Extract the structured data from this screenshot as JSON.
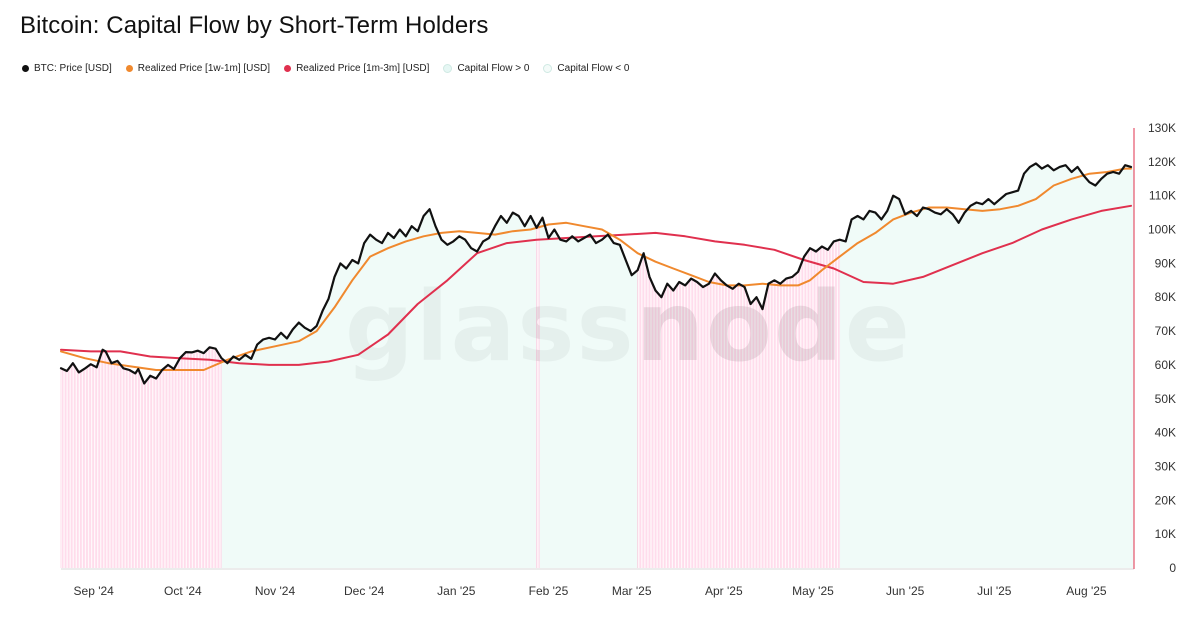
{
  "title": "Bitcoin: Capital Flow by Short-Term Holders",
  "watermark": "glassnode",
  "legend": [
    {
      "label": "BTC: Price [USD]",
      "color": "#111111"
    },
    {
      "label": "Realized Price [1w-1m] [USD]",
      "color": "#f0892e"
    },
    {
      "label": "Realized Price [1m-3m] [USD]",
      "color": "#e0304e"
    },
    {
      "label": "Capital Flow > 0",
      "color": "#e6f7f4"
    },
    {
      "label": "Capital Flow < 0",
      "color": "#f4fbf9"
    }
  ],
  "chart_data": {
    "type": "line",
    "title": "Bitcoin: Capital Flow by Short-Term Holders",
    "x_ticks": [
      {
        "label": "Sep '24",
        "day": 11
      },
      {
        "label": "Oct '24",
        "day": 41
      },
      {
        "label": "Nov '24",
        "day": 72
      },
      {
        "label": "Dec '24",
        "day": 102
      },
      {
        "label": "Jan '25",
        "day": 133
      },
      {
        "label": "Feb '25",
        "day": 164
      },
      {
        "label": "Mar '25",
        "day": 192
      },
      {
        "label": "Apr '25",
        "day": 223
      },
      {
        "label": "May '25",
        "day": 253
      },
      {
        "label": "Jun '25",
        "day": 284
      },
      {
        "label": "Jul '25",
        "day": 314
      },
      {
        "label": "Aug '25",
        "day": 345
      }
    ],
    "y_ticks": [
      "0",
      "10K",
      "20K",
      "30K",
      "40K",
      "50K",
      "60K",
      "70K",
      "80K",
      "90K",
      "100K",
      "110K",
      "120K",
      "130K"
    ],
    "ylim": [
      0,
      130000
    ],
    "xlim_days": [
      0,
      361
    ],
    "series": [
      {
        "name": "BTC: Price [USD]",
        "color": "#111111",
        "points": [
          [
            0,
            59000
          ],
          [
            2,
            58200
          ],
          [
            4,
            60500
          ],
          [
            6,
            57800
          ],
          [
            8,
            58900
          ],
          [
            10,
            60200
          ],
          [
            12,
            59300
          ],
          [
            14,
            64500
          ],
          [
            15,
            64000
          ],
          [
            17,
            60500
          ],
          [
            19,
            61200
          ],
          [
            21,
            59000
          ],
          [
            23,
            58500
          ],
          [
            25,
            57500
          ],
          [
            26,
            58800
          ],
          [
            28,
            54500
          ],
          [
            30,
            56800
          ],
          [
            32,
            56000
          ],
          [
            34,
            58500
          ],
          [
            36,
            60000
          ],
          [
            38,
            58800
          ],
          [
            40,
            62000
          ],
          [
            42,
            63800
          ],
          [
            44,
            63700
          ],
          [
            46,
            64200
          ],
          [
            48,
            63500
          ],
          [
            50,
            65200
          ],
          [
            52,
            64800
          ],
          [
            54,
            62000
          ],
          [
            56,
            60500
          ],
          [
            58,
            62500
          ],
          [
            60,
            61500
          ],
          [
            62,
            63000
          ],
          [
            64,
            61800
          ],
          [
            66,
            66000
          ],
          [
            68,
            67500
          ],
          [
            70,
            68000
          ],
          [
            72,
            67500
          ],
          [
            74,
            69500
          ],
          [
            76,
            67800
          ],
          [
            78,
            70500
          ],
          [
            80,
            72500
          ],
          [
            82,
            71000
          ],
          [
            84,
            70000
          ],
          [
            86,
            71500
          ],
          [
            88,
            76000
          ],
          [
            90,
            79500
          ],
          [
            92,
            86000
          ],
          [
            94,
            90000
          ],
          [
            96,
            88500
          ],
          [
            98,
            91000
          ],
          [
            100,
            90000
          ],
          [
            102,
            96000
          ],
          [
            104,
            98500
          ],
          [
            106,
            97000
          ],
          [
            108,
            96000
          ],
          [
            110,
            99000
          ],
          [
            112,
            97500
          ],
          [
            114,
            100000
          ],
          [
            116,
            98000
          ],
          [
            118,
            101000
          ],
          [
            120,
            99500
          ],
          [
            122,
            104000
          ],
          [
            124,
            106000
          ],
          [
            126,
            101000
          ],
          [
            128,
            97000
          ],
          [
            130,
            95500
          ],
          [
            132,
            96500
          ],
          [
            134,
            98000
          ],
          [
            136,
            97000
          ],
          [
            138,
            94500
          ],
          [
            140,
            93500
          ],
          [
            142,
            96500
          ],
          [
            144,
            97500
          ],
          [
            146,
            101000
          ],
          [
            148,
            104000
          ],
          [
            150,
            102000
          ],
          [
            152,
            105000
          ],
          [
            154,
            104000
          ],
          [
            156,
            101000
          ],
          [
            158,
            104000
          ],
          [
            160,
            100500
          ],
          [
            162,
            103500
          ],
          [
            164,
            97500
          ],
          [
            166,
            100000
          ],
          [
            168,
            97000
          ],
          [
            170,
            96500
          ],
          [
            172,
            98000
          ],
          [
            174,
            96500
          ],
          [
            176,
            97500
          ],
          [
            178,
            98500
          ],
          [
            180,
            96000
          ],
          [
            182,
            97000
          ],
          [
            184,
            98500
          ],
          [
            186,
            96000
          ],
          [
            188,
            95500
          ],
          [
            190,
            91000
          ],
          [
            192,
            86500
          ],
          [
            194,
            88000
          ],
          [
            196,
            93000
          ],
          [
            198,
            86000
          ],
          [
            200,
            82000
          ],
          [
            202,
            80000
          ],
          [
            204,
            84000
          ],
          [
            206,
            82000
          ],
          [
            208,
            84500
          ],
          [
            210,
            83500
          ],
          [
            212,
            85500
          ],
          [
            214,
            84500
          ],
          [
            216,
            83000
          ],
          [
            218,
            84000
          ],
          [
            220,
            87000
          ],
          [
            222,
            85000
          ],
          [
            224,
            83500
          ],
          [
            226,
            82500
          ],
          [
            228,
            84000
          ],
          [
            230,
            83000
          ],
          [
            232,
            78000
          ],
          [
            234,
            80000
          ],
          [
            236,
            76500
          ],
          [
            238,
            84000
          ],
          [
            240,
            85000
          ],
          [
            242,
            84000
          ],
          [
            244,
            85500
          ],
          [
            246,
            86000
          ],
          [
            248,
            87500
          ],
          [
            250,
            92000
          ],
          [
            252,
            94500
          ],
          [
            254,
            93500
          ],
          [
            256,
            95000
          ],
          [
            258,
            94000
          ],
          [
            260,
            96500
          ],
          [
            262,
            97000
          ],
          [
            264,
            96500
          ],
          [
            266,
            103000
          ],
          [
            268,
            104000
          ],
          [
            270,
            103000
          ],
          [
            272,
            105500
          ],
          [
            274,
            105000
          ],
          [
            276,
            103000
          ],
          [
            278,
            105500
          ],
          [
            280,
            110000
          ],
          [
            282,
            109000
          ],
          [
            284,
            104500
          ],
          [
            286,
            105500
          ],
          [
            288,
            104000
          ],
          [
            290,
            106500
          ],
          [
            292,
            106000
          ],
          [
            294,
            105000
          ],
          [
            296,
            104500
          ],
          [
            298,
            106000
          ],
          [
            300,
            104500
          ],
          [
            302,
            102000
          ],
          [
            304,
            105000
          ],
          [
            306,
            107000
          ],
          [
            308,
            108000
          ],
          [
            310,
            107500
          ],
          [
            312,
            109000
          ],
          [
            314,
            107500
          ],
          [
            316,
            109000
          ],
          [
            318,
            110500
          ],
          [
            320,
            111000
          ],
          [
            322,
            111500
          ],
          [
            324,
            116500
          ],
          [
            326,
            118500
          ],
          [
            328,
            119500
          ],
          [
            330,
            118000
          ],
          [
            332,
            119000
          ],
          [
            334,
            117500
          ],
          [
            336,
            118500
          ],
          [
            338,
            119000
          ],
          [
            340,
            117000
          ],
          [
            342,
            118500
          ],
          [
            344,
            116000
          ],
          [
            346,
            114000
          ],
          [
            348,
            113000
          ],
          [
            350,
            115000
          ],
          [
            352,
            116500
          ],
          [
            354,
            117000
          ],
          [
            356,
            116500
          ],
          [
            358,
            119000
          ],
          [
            360,
            118500
          ]
        ]
      },
      {
        "name": "Realized Price [1w-1m] [USD]",
        "color": "#f0892e",
        "points": [
          [
            0,
            64000
          ],
          [
            8,
            62000
          ],
          [
            16,
            60500
          ],
          [
            24,
            59500
          ],
          [
            32,
            58500
          ],
          [
            40,
            58500
          ],
          [
            48,
            58500
          ],
          [
            56,
            61500
          ],
          [
            64,
            64000
          ],
          [
            72,
            65500
          ],
          [
            80,
            67000
          ],
          [
            86,
            70000
          ],
          [
            92,
            77000
          ],
          [
            98,
            85000
          ],
          [
            104,
            92000
          ],
          [
            110,
            94500
          ],
          [
            116,
            96500
          ],
          [
            122,
            98000
          ],
          [
            128,
            99000
          ],
          [
            134,
            99500
          ],
          [
            140,
            99000
          ],
          [
            146,
            98500
          ],
          [
            152,
            99500
          ],
          [
            158,
            100000
          ],
          [
            164,
            101500
          ],
          [
            170,
            102000
          ],
          [
            176,
            101000
          ],
          [
            182,
            100000
          ],
          [
            188,
            97000
          ],
          [
            194,
            93000
          ],
          [
            200,
            90500
          ],
          [
            206,
            88500
          ],
          [
            212,
            86500
          ],
          [
            218,
            84500
          ],
          [
            224,
            83500
          ],
          [
            230,
            83500
          ],
          [
            236,
            84000
          ],
          [
            242,
            83500
          ],
          [
            248,
            83500
          ],
          [
            252,
            85000
          ],
          [
            256,
            88000
          ],
          [
            262,
            92000
          ],
          [
            268,
            96000
          ],
          [
            274,
            99000
          ],
          [
            280,
            103000
          ],
          [
            286,
            105000
          ],
          [
            292,
            106500
          ],
          [
            298,
            106500
          ],
          [
            304,
            106000
          ],
          [
            310,
            105500
          ],
          [
            316,
            106000
          ],
          [
            322,
            107000
          ],
          [
            328,
            109000
          ],
          [
            334,
            113000
          ],
          [
            340,
            115000
          ],
          [
            346,
            116500
          ],
          [
            352,
            117000
          ],
          [
            358,
            118000
          ],
          [
            360,
            118000
          ]
        ]
      },
      {
        "name": "Realized Price [1m-3m] [USD]",
        "color": "#e0304e",
        "points": [
          [
            0,
            64500
          ],
          [
            10,
            64000
          ],
          [
            20,
            64000
          ],
          [
            30,
            62500
          ],
          [
            40,
            62000
          ],
          [
            50,
            61500
          ],
          [
            60,
            60500
          ],
          [
            70,
            60000
          ],
          [
            80,
            60000
          ],
          [
            90,
            61000
          ],
          [
            100,
            63000
          ],
          [
            110,
            69000
          ],
          [
            120,
            78000
          ],
          [
            130,
            85000
          ],
          [
            140,
            93000
          ],
          [
            150,
            96000
          ],
          [
            160,
            97000
          ],
          [
            170,
            97500
          ],
          [
            180,
            98000
          ],
          [
            190,
            98500
          ],
          [
            200,
            99000
          ],
          [
            210,
            98000
          ],
          [
            220,
            96500
          ],
          [
            230,
            95500
          ],
          [
            240,
            94000
          ],
          [
            250,
            91000
          ],
          [
            260,
            88500
          ],
          [
            270,
            84500
          ],
          [
            280,
            84000
          ],
          [
            290,
            86000
          ],
          [
            300,
            89500
          ],
          [
            310,
            93000
          ],
          [
            320,
            96000
          ],
          [
            330,
            100000
          ],
          [
            340,
            103000
          ],
          [
            350,
            105500
          ],
          [
            360,
            107000
          ]
        ]
      }
    ],
    "capital_flow": [
      {
        "sign": "< 0",
        "start_day": 0,
        "end_day": 54,
        "color": "#ff5aa0"
      },
      {
        "sign": "> 0",
        "start_day": 54,
        "end_day": 160,
        "color": "#d4f4ec"
      },
      {
        "sign": "< 0",
        "start_day": 160,
        "end_day": 161,
        "color": "#ff5aa0"
      },
      {
        "sign": "> 0",
        "start_day": 161,
        "end_day": 194,
        "color": "#d4f4ec"
      },
      {
        "sign": "< 0",
        "start_day": 194,
        "end_day": 262,
        "color": "#ff5aa0"
      },
      {
        "sign": "> 0",
        "start_day": 262,
        "end_day": 361,
        "color": "#d4f4ec"
      }
    ]
  }
}
